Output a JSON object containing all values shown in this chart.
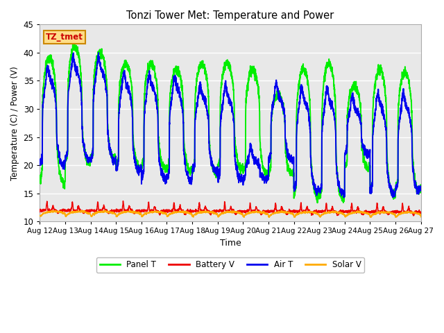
{
  "title": "Tonzi Tower Met: Temperature and Power",
  "xlabel": "Time",
  "ylabel": "Temperature (C) / Power (V)",
  "ylim": [
    10,
    45
  ],
  "yticks": [
    10,
    15,
    20,
    25,
    30,
    35,
    40,
    45
  ],
  "xtick_labels": [
    "Aug 12",
    "Aug 13",
    "Aug 14",
    "Aug 15",
    "Aug 16",
    "Aug 17",
    "Aug 18",
    "Aug 19",
    "Aug 20",
    "Aug 21",
    "Aug 22",
    "Aug 23",
    "Aug 24",
    "Aug 25",
    "Aug 26",
    "Aug 27"
  ],
  "panel_t_color": "#00ee00",
  "battery_v_color": "#ee0000",
  "air_t_color": "#0000ee",
  "solar_v_color": "#ffaa00",
  "bg_color": "#e8e8e8",
  "fig_bg_color": "#ffffff",
  "grid_color": "#ffffff",
  "label_bg_color": "#ffdd88",
  "label_text_color": "#cc0000",
  "label_border_color": "#cc8800",
  "label_text": "TZ_tmet",
  "panel_t_lw": 1.4,
  "battery_v_lw": 1.1,
  "air_t_lw": 1.4,
  "solar_v_lw": 1.1,
  "panel_peaks": [
    39,
    41,
    40,
    38,
    38,
    37,
    38,
    38,
    37,
    32.5,
    37,
    38,
    34,
    37,
    36.5
  ],
  "panel_troughs": [
    17,
    20.5,
    21,
    19.5,
    19.5,
    19,
    18.5,
    19.5,
    18.5,
    18.5,
    14.5,
    14,
    19.5,
    14.8,
    15.5
  ],
  "air_peaks": [
    35,
    37,
    37,
    34,
    34,
    33.5,
    32,
    32,
    21,
    32,
    31.5,
    31.5,
    30,
    30.5,
    30.5
  ],
  "air_troughs": [
    20,
    21,
    21,
    19,
    17.5,
    17.5,
    19,
    17.5,
    17.5,
    21,
    15.5,
    15,
    22,
    15,
    15.5
  ]
}
